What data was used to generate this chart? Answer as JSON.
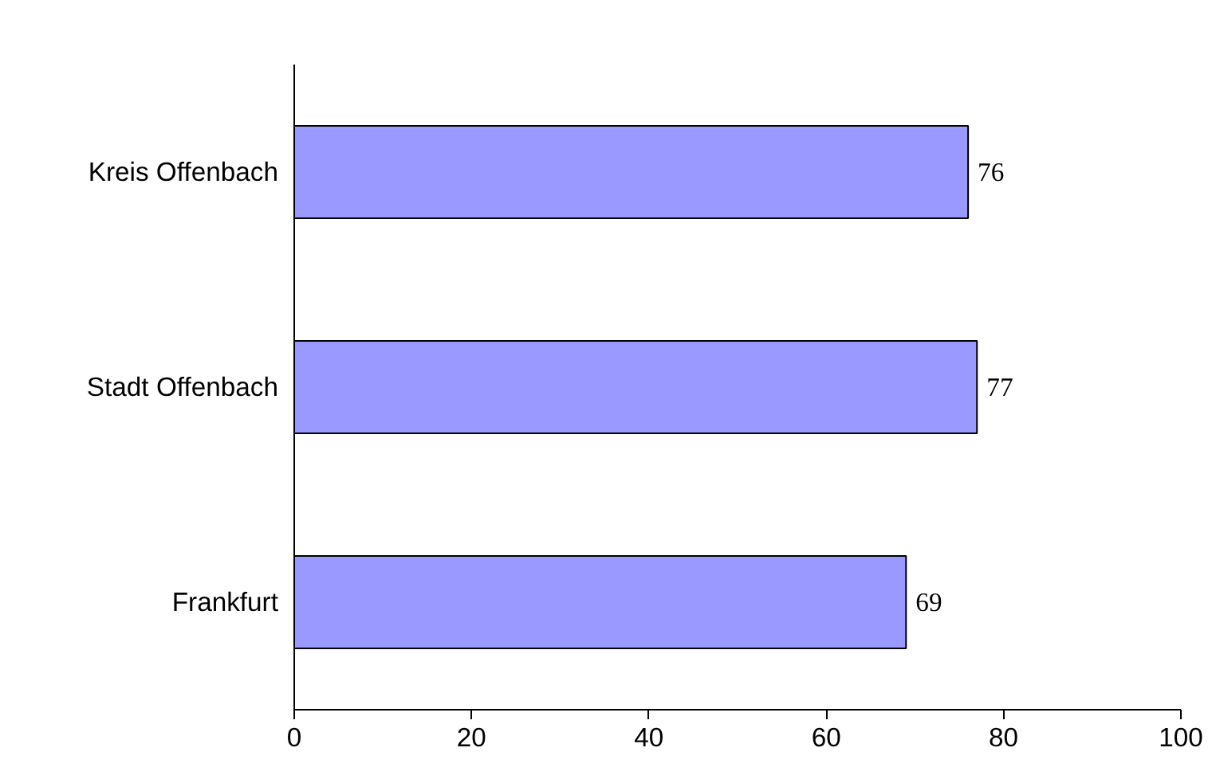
{
  "chart_data": {
    "type": "bar",
    "orientation": "horizontal",
    "categories": [
      "Kreis Offenbach",
      "Stadt Offenbach",
      "Frankfurt"
    ],
    "values": [
      76,
      77,
      69
    ],
    "color": "#9999ff",
    "xlim": [
      0,
      100
    ],
    "xticks": [
      0,
      20,
      40,
      60,
      80,
      100
    ],
    "grid": false,
    "data_labels": true
  }
}
